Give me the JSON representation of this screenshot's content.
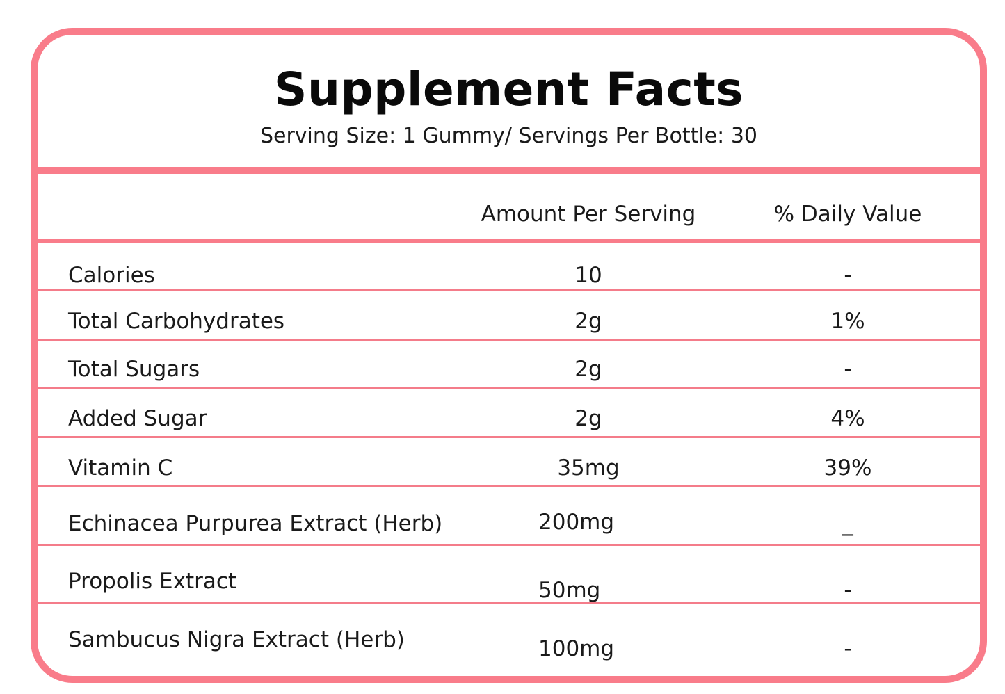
{
  "title": "Supplement Facts",
  "subtitle": "Serving Size: 1 Gummy/ Servings Per Bottle: 30",
  "headers": {
    "amount": "Amount Per Serving",
    "daily_value": "% Daily Value"
  },
  "rows": [
    {
      "name": "Calories",
      "amount": "10",
      "dv": "-"
    },
    {
      "name": "Total Carbohydrates",
      "amount": "2g",
      "dv": "1%"
    },
    {
      "name": "Total Sugars",
      "amount": "2g",
      "dv": "-"
    },
    {
      "name": "Added Sugar",
      "amount": "2g",
      "dv": "4%"
    },
    {
      "name": "Vitamin C",
      "amount": "35mg",
      "dv": "39%"
    },
    {
      "name": "Echinacea Purpurea Extract (Herb)",
      "amount": "200mg",
      "dv": "_"
    },
    {
      "name": "Propolis Extract",
      "amount": "50mg",
      "dv": "-"
    },
    {
      "name": "Sambucus Nigra Extract (Herb)",
      "amount": "100mg",
      "dv": "-"
    }
  ],
  "colors": {
    "accent": "#f97c8a",
    "text": "#1a1a1a"
  }
}
